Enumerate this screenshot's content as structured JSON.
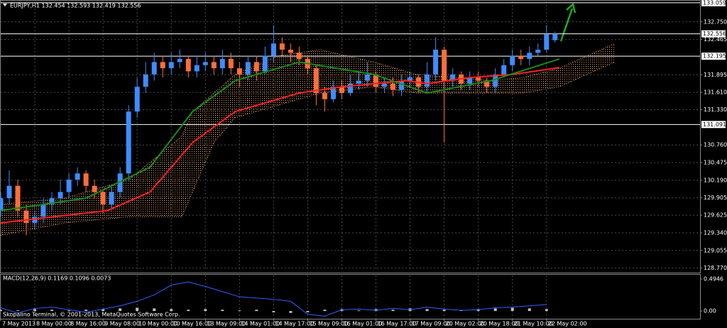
{
  "chart_data": [
    {
      "type": "candlestick",
      "title": "EURJPY,H1 132.454 132.593 132.419 132.556",
      "up_color": "#3f8cff",
      "down_color": "#ff6e3a",
      "x": [
        0,
        4,
        8,
        12,
        16,
        20,
        24,
        28,
        32,
        36,
        40,
        44,
        48,
        52,
        56,
        60,
        64,
        68,
        72,
        76,
        80,
        84,
        88,
        92,
        96,
        100,
        104,
        108,
        112,
        116,
        120,
        124,
        128,
        132,
        136,
        140,
        144,
        148,
        152,
        156,
        160,
        164,
        168,
        172,
        176,
        180,
        184,
        188,
        192,
        196,
        200,
        204,
        208,
        212,
        216,
        220,
        224,
        228,
        232,
        236,
        240,
        244,
        248,
        252,
        256,
        260
      ],
      "open": [
        129.7,
        129.9,
        130.1,
        129.7,
        129.5,
        129.6,
        129.8,
        129.9,
        130.0,
        130.2,
        130.3,
        130.1,
        130.0,
        129.8,
        130.0,
        130.3,
        131.3,
        131.7,
        131.9,
        132.1,
        132.0,
        132.1,
        132.15,
        131.95,
        132.05,
        132.1,
        132.0,
        132.15,
        132.0,
        131.9,
        132.1,
        131.95,
        132.2,
        132.4,
        132.3,
        132.25,
        132.15,
        132.0,
        131.6,
        131.5,
        131.7,
        131.6,
        131.75,
        131.8,
        131.9,
        131.7,
        131.75,
        131.65,
        131.8,
        131.85,
        131.7,
        131.9,
        132.3,
        131.8,
        131.9,
        131.75,
        131.85,
        131.8,
        131.7,
        131.9,
        132.05,
        132.2,
        132.15,
        132.25,
        132.3,
        132.454
      ],
      "high": [
        130.0,
        130.35,
        130.2,
        129.8,
        129.7,
        129.9,
        130.0,
        130.2,
        130.3,
        130.4,
        130.35,
        130.2,
        130.05,
        130.1,
        130.4,
        131.4,
        131.85,
        132.1,
        132.25,
        132.2,
        132.25,
        132.3,
        132.2,
        132.2,
        132.25,
        132.2,
        132.3,
        132.25,
        132.1,
        132.2,
        132.2,
        132.35,
        132.7,
        132.5,
        132.4,
        132.35,
        132.2,
        132.05,
        131.7,
        131.8,
        131.8,
        131.9,
        131.95,
        132.1,
        131.95,
        131.85,
        131.85,
        131.9,
        131.95,
        131.9,
        132.1,
        132.5,
        132.35,
        132.0,
        131.95,
        131.95,
        131.95,
        131.85,
        132.0,
        132.15,
        132.3,
        132.3,
        132.35,
        132.4,
        132.7,
        132.593
      ],
      "low": [
        129.6,
        129.8,
        129.6,
        129.3,
        129.4,
        129.5,
        129.7,
        129.8,
        129.9,
        130.1,
        130.0,
        129.9,
        129.65,
        129.7,
        129.9,
        130.2,
        131.2,
        131.6,
        131.8,
        131.85,
        131.9,
        132.0,
        131.85,
        131.85,
        131.95,
        131.9,
        131.9,
        131.9,
        131.7,
        131.8,
        131.8,
        131.9,
        132.1,
        132.2,
        132.1,
        132.05,
        131.9,
        131.4,
        131.3,
        131.45,
        131.5,
        131.55,
        131.65,
        131.7,
        131.6,
        131.6,
        131.55,
        131.55,
        131.7,
        131.6,
        131.6,
        131.8,
        130.8,
        131.7,
        131.65,
        131.65,
        131.7,
        131.6,
        131.6,
        131.85,
        131.95,
        132.05,
        132.05,
        132.2,
        132.25,
        132.419
      ],
      "close": [
        129.9,
        130.1,
        129.7,
        129.5,
        129.6,
        129.8,
        129.9,
        130.0,
        130.2,
        130.3,
        130.1,
        130.0,
        129.8,
        130.0,
        130.3,
        131.3,
        131.7,
        131.9,
        132.1,
        132.0,
        132.1,
        132.15,
        131.95,
        132.05,
        132.1,
        132.0,
        132.15,
        132.0,
        131.9,
        132.1,
        131.95,
        132.2,
        132.4,
        132.3,
        132.25,
        132.15,
        132.0,
        131.6,
        131.5,
        131.7,
        131.6,
        131.75,
        131.8,
        131.9,
        131.7,
        131.75,
        131.65,
        131.8,
        131.85,
        131.7,
        131.9,
        132.3,
        131.8,
        131.9,
        131.75,
        131.85,
        131.8,
        131.7,
        131.9,
        132.05,
        132.2,
        132.15,
        132.25,
        132.3,
        132.55,
        132.556
      ],
      "moving_averages": [
        {
          "color": "#ff2020",
          "x": [
            0,
            50,
            70,
            90,
            110,
            140,
            160,
            190,
            200,
            220,
            240,
            262
          ],
          "values": [
            129.5,
            129.7,
            130.0,
            130.8,
            131.3,
            131.6,
            131.7,
            131.8,
            131.75,
            131.85,
            131.9,
            132.01
          ]
        },
        {
          "color": "#1a8a1a",
          "x": [
            0,
            40,
            70,
            90,
            110,
            140,
            175,
            200,
            230,
            262
          ],
          "values": [
            129.7,
            129.9,
            130.4,
            131.3,
            131.8,
            132.1,
            131.9,
            131.6,
            131.8,
            132.15
          ]
        }
      ],
      "cloud": {
        "color": "#e8a060",
        "x": [
          0,
          30,
          60,
          85,
          90,
          100,
          110,
          130,
          150,
          175,
          195,
          230,
          245,
          262,
          288
        ],
        "upper": [
          129.8,
          129.9,
          130.2,
          130.9,
          131.3,
          131.6,
          131.9,
          132.2,
          132.3,
          132.1,
          131.9,
          131.8,
          131.85,
          132.0,
          132.4
        ],
        "lower": [
          129.3,
          129.5,
          129.6,
          129.6,
          130.0,
          130.8,
          131.2,
          131.4,
          131.6,
          131.7,
          131.6,
          131.6,
          131.6,
          131.7,
          132.1
        ]
      },
      "xlim": [
        0,
        328
      ],
      "ylim": [
        128.72,
        133.08
      ],
      "yticks": [
        {
          "value": 132.75,
          "label": "132.750"
        },
        132.465,
        131.895,
        {
          "value": 131.61,
          "label": "131.610"
        },
        {
          "value": 131.33,
          "label": "131.330"
        },
        {
          "value": 130.76,
          "label": "130.760"
        },
        130.475,
        {
          "value": 130.19,
          "label": "130.190"
        },
        129.905,
        129.625,
        {
          "value": 129.34,
          "label": "129.340"
        },
        129.055,
        {
          "value": 128.77,
          "label": "128.770"
        }
      ],
      "hlines": [
        133.059,
        132.556,
        132.195,
        131.091
      ],
      "xticks": [
        {
          "value": 0,
          "label": "7 May 2013"
        },
        {
          "value": 16,
          "label": "8 May 00:00"
        },
        {
          "value": 32,
          "label": "8 May 16:00"
        },
        {
          "value": 48,
          "label": "9 May 08:00"
        },
        {
          "value": 64,
          "label": "10 May 00:00"
        },
        {
          "value": 80,
          "label": "10 May 16:00"
        },
        {
          "value": 96,
          "label": "13 May 09:00"
        },
        {
          "value": 112,
          "label": "14 May 01:00"
        },
        {
          "value": 128,
          "label": "14 May 17:00"
        },
        {
          "value": 144,
          "label": "15 May 09:00"
        },
        {
          "value": 160,
          "label": "16 May 01:00"
        },
        {
          "value": 176,
          "label": "16 May 17:00"
        },
        {
          "value": 192,
          "label": "17 May 09:00"
        },
        {
          "value": 208,
          "label": "20 May 02:00"
        },
        {
          "value": 224,
          "label": "20 May 18:00"
        },
        {
          "value": 240,
          "label": "21 May 10:00"
        },
        {
          "value": 256,
          "label": "22 May 02:00"
        }
      ],
      "grid": true
    },
    {
      "type": "macd",
      "title": "MACD(12,26,9) 0.1169 0.1096 0.0073",
      "footer": "Skopalino Terminal, © 2001-2013, MetaQuotes Software Corp.",
      "x": [
        0,
        8,
        16,
        24,
        32,
        40,
        48,
        56,
        64,
        72,
        80,
        88,
        96,
        104,
        112,
        120,
        128,
        136,
        144,
        152,
        160,
        168,
        176,
        184,
        192,
        200,
        208,
        216,
        224,
        232,
        240,
        248,
        256
      ],
      "histogram": {
        "color": "#c0c0c0",
        "values": [
          0.02,
          0.01,
          0.03,
          0.02,
          0.01,
          0.02,
          0.03,
          0.04,
          0.05,
          0.04,
          0.03,
          0.02,
          0.03,
          0.02,
          0.01,
          0.02,
          -0.02,
          -0.03,
          -0.02,
          0.02,
          0.03,
          0.01,
          0.03,
          0.02,
          0.04,
          0.03,
          0.02,
          0.01,
          0.03,
          0.04,
          0.05,
          0.04,
          0.03
        ]
      },
      "line": {
        "color": "#3060ff",
        "values": [
          0.05,
          -0.03,
          0.04,
          0.06,
          0.02,
          -0.02,
          0.03,
          0.08,
          0.15,
          0.25,
          0.4,
          0.45,
          0.38,
          0.3,
          0.22,
          0.2,
          0.18,
          0.15,
          -0.05,
          -0.08,
          0.02,
          0.03,
          0.01,
          0.04,
          0.02,
          0.06,
          0.03,
          0.01,
          0.02,
          0.05,
          0.06,
          0.08,
          0.1
        ]
      },
      "xlim": [
        0,
        328
      ],
      "ylim": [
        -0.12,
        0.55
      ],
      "yticks": [
        0.4946,
        {
          "value": 0,
          "label": "0.00"
        }
      ]
    }
  ]
}
